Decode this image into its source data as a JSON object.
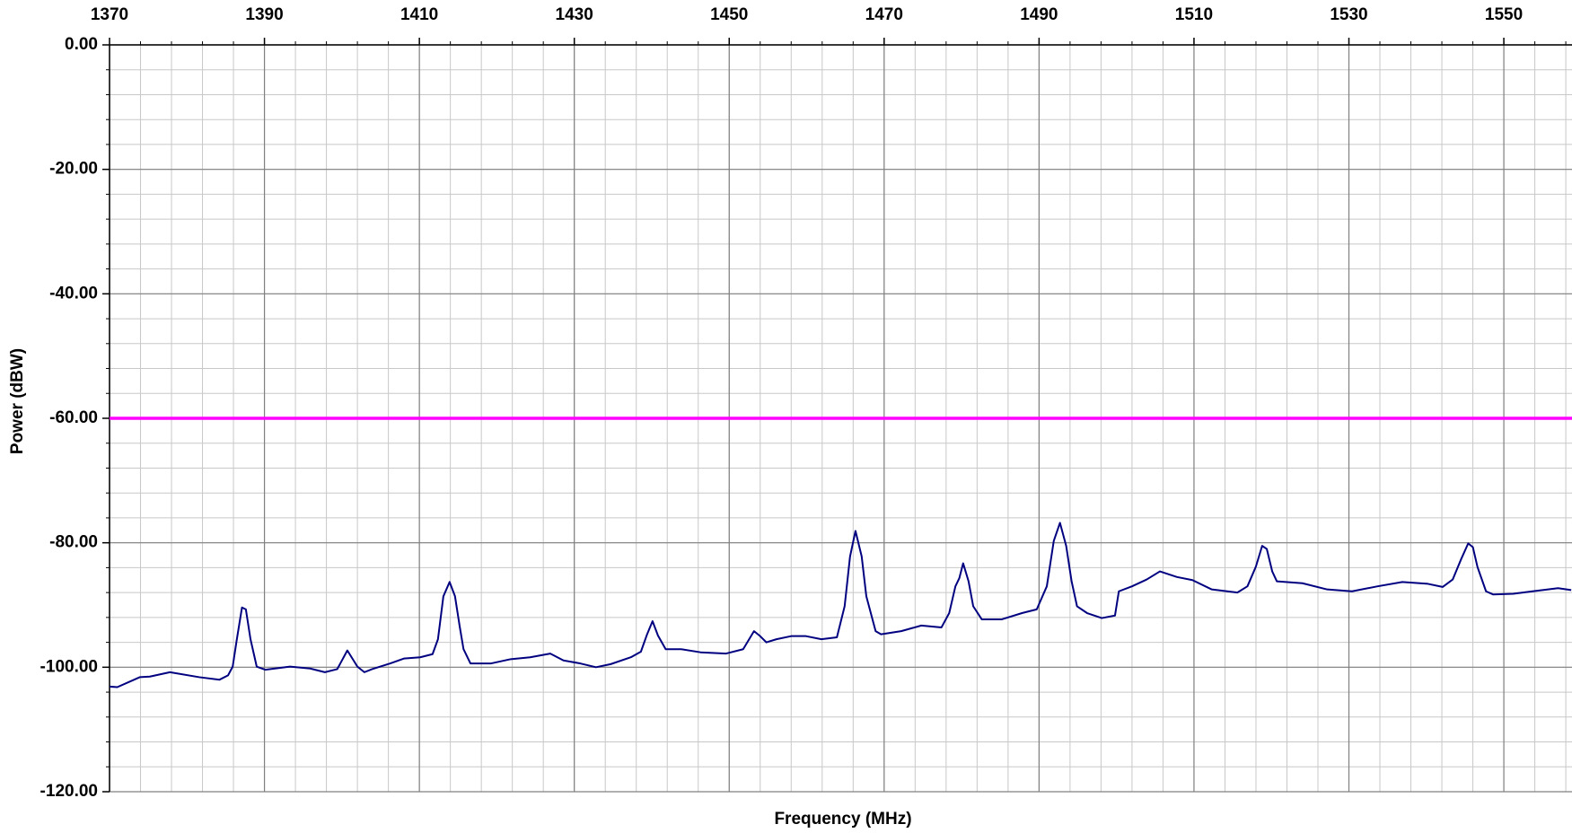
{
  "chart_data": {
    "type": "line",
    "xlabel": "Frequency (MHz)",
    "ylabel": "Power (dBW)",
    "xlim": [
      1370,
      1558.8
    ],
    "ylim": [
      -120,
      0
    ],
    "xticks": [
      1370,
      1390,
      1410,
      1430,
      1450,
      1470,
      1490,
      1510,
      1530,
      1550
    ],
    "yticks": [
      {
        "value": 0,
        "label": "0.00"
      },
      {
        "value": -20,
        "label": "-20.00"
      },
      {
        "value": -40,
        "label": "-40.00"
      },
      {
        "value": -60,
        "label": "-60.00"
      },
      {
        "value": -80,
        "label": "-80.00"
      },
      {
        "value": -100,
        "label": "-100.00"
      },
      {
        "value": -120,
        "label": "-120.00"
      }
    ],
    "xminorticks": [
      1370,
      1374,
      1378,
      1382,
      1386,
      1390,
      1394,
      1398,
      1402,
      1406,
      1410,
      1414,
      1418,
      1422,
      1426,
      1430,
      1434,
      1438,
      1442,
      1446,
      1450,
      1454,
      1458,
      1462,
      1466,
      1470,
      1474,
      1478,
      1482,
      1486,
      1490,
      1494,
      1498,
      1502,
      1506,
      1510,
      1514,
      1518,
      1522,
      1526,
      1530,
      1534,
      1538,
      1542,
      1546,
      1550,
      1554,
      1558
    ],
    "yminorticks": [
      0,
      -4,
      -8,
      -12,
      -16,
      -20,
      -24,
      -28,
      -32,
      -36,
      -40,
      -44,
      -48,
      -52,
      -56,
      -60,
      -64,
      -68,
      -72,
      -76,
      -80,
      -84,
      -88,
      -92,
      -96,
      -100,
      -104,
      -108,
      -112,
      -116,
      -120
    ],
    "grid": true,
    "x": [
      1370,
      1371,
      1373.9,
      1375.2,
      1377.8,
      1381.6,
      1384.2,
      1385.3,
      1385.9,
      1386.4,
      1387.1,
      1387.6,
      1388.2,
      1389.0,
      1390.1,
      1393.3,
      1395.9,
      1397.8,
      1399.4,
      1400.7,
      1402.0,
      1402.9,
      1403.9,
      1406.2,
      1408.0,
      1410.1,
      1411.7,
      1412.4,
      1413.1,
      1413.9,
      1414.6,
      1415.2,
      1415.7,
      1416.6,
      1419.2,
      1421.8,
      1424.3,
      1426.9,
      1428.6,
      1430.8,
      1432.8,
      1434.7,
      1437.3,
      1438.6,
      1439.4,
      1440.1,
      1440.8,
      1441.8,
      1443.8,
      1446.3,
      1449.6,
      1451.8,
      1453.2,
      1453.9,
      1454.8,
      1456.1,
      1458.0,
      1459.9,
      1461.9,
      1463.9,
      1464.9,
      1465.6,
      1466.3,
      1467.1,
      1467.7,
      1468.9,
      1469.6,
      1472.2,
      1474.8,
      1477.4,
      1478.4,
      1479.2,
      1479.7,
      1480.2,
      1480.9,
      1481.5,
      1482.6,
      1485.2,
      1487.8,
      1489.7,
      1491.0,
      1491.9,
      1492.7,
      1493.5,
      1494.2,
      1494.9,
      1496.2,
      1498.1,
      1499.8,
      1500.3,
      1502.0,
      1503.9,
      1505.6,
      1507.8,
      1509.8,
      1512.3,
      1515.6,
      1516.9,
      1518.0,
      1518.8,
      1519.4,
      1520.1,
      1520.7,
      1524.0,
      1527.2,
      1530.4,
      1533.7,
      1536.9,
      1540.2,
      1542.1,
      1543.4,
      1544.5,
      1545.4,
      1546.0,
      1546.6,
      1547.7,
      1548.6,
      1551.2,
      1553.7,
      1557.0,
      1558.7
    ],
    "series": [
      {
        "color": "#000080",
        "values": [
          -103.1,
          -103.2,
          -101.6,
          -101.5,
          -100.8,
          -101.6,
          -102.0,
          -101.3,
          -99.9,
          -95.8,
          -90.4,
          -90.7,
          -95.5,
          -99.9,
          -100.4,
          -99.9,
          -100.2,
          -100.8,
          -100.3,
          -97.3,
          -99.9,
          -100.8,
          -100.3,
          -99.4,
          -98.6,
          -98.4,
          -97.9,
          -95.5,
          -88.6,
          -86.3,
          -88.6,
          -93.4,
          -97.1,
          -99.4,
          -99.4,
          -98.7,
          -98.4,
          -97.8,
          -98.9,
          -99.4,
          -100.0,
          -99.5,
          -98.4,
          -97.5,
          -94.7,
          -92.6,
          -94.9,
          -97.1,
          -97.1,
          -97.6,
          -97.8,
          -97.1,
          -94.2,
          -94.9,
          -96.0,
          -95.5,
          -95.0,
          -95.0,
          -95.5,
          -95.2,
          -90.2,
          -82.2,
          -78.1,
          -82.2,
          -88.6,
          -94.2,
          -94.7,
          -94.2,
          -93.3,
          -93.6,
          -91.3,
          -87.0,
          -85.7,
          -83.3,
          -86.2,
          -90.2,
          -92.3,
          -92.3,
          -91.3,
          -90.7,
          -87.0,
          -79.7,
          -76.8,
          -80.5,
          -86.2,
          -90.2,
          -91.3,
          -92.1,
          -91.7,
          -87.8,
          -87.0,
          -85.9,
          -84.6,
          -85.5,
          -86.0,
          -87.5,
          -88.0,
          -87.0,
          -83.8,
          -80.5,
          -81.0,
          -84.6,
          -86.2,
          -86.5,
          -87.5,
          -87.8,
          -87.0,
          -86.3,
          -86.6,
          -87.1,
          -85.9,
          -82.6,
          -80.1,
          -80.7,
          -83.9,
          -87.8,
          -88.3,
          -88.2,
          -87.8,
          -87.3,
          -87.6
        ]
      }
    ],
    "reference_lines": [
      {
        "value": -60,
        "color": "#ff00ff"
      }
    ]
  }
}
